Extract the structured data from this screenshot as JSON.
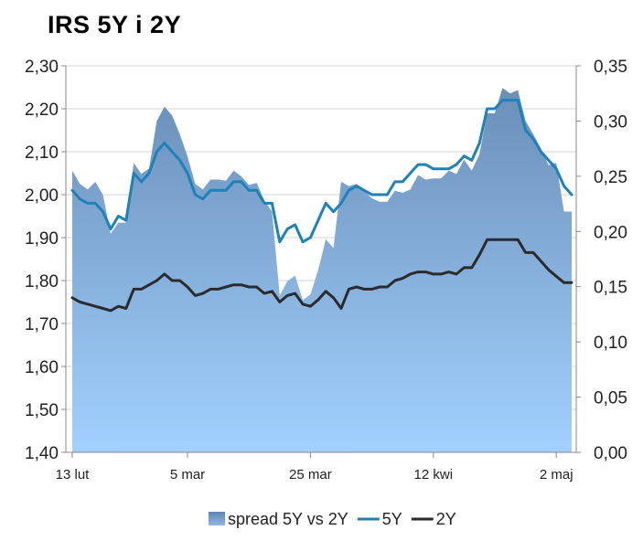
{
  "chart_data": {
    "type": "line",
    "title": "IRS 5Y i 2Y",
    "y_left": {
      "min": 1.4,
      "max": 2.3,
      "step": 0.1,
      "ticks": [
        "1,40",
        "1,50",
        "1,60",
        "1,70",
        "1,80",
        "1,90",
        "2,00",
        "2,10",
        "2,20",
        "2,30"
      ]
    },
    "y_right": {
      "min": 0,
      "max": 0.35,
      "step": 0.05,
      "ticks": [
        "0,00",
        "0,05",
        "0,10",
        "0,15",
        "0,20",
        "0,25",
        "0,30",
        "0,35"
      ]
    },
    "x_ticks": [
      {
        "label": "13 lut",
        "index": 0
      },
      {
        "label": "5 mar",
        "index": 15
      },
      {
        "label": "25 mar",
        "index": 31
      },
      {
        "label": "12 kwi",
        "index": 47
      },
      {
        "label": "2 maj",
        "index": 63
      }
    ],
    "legend_position": "bottom",
    "series": [
      {
        "name": "spread 5Y vs 2Y",
        "kind": "area",
        "axis": "right",
        "color": "#6a93c0",
        "values": [
          0.255,
          0.243,
          0.238,
          0.245,
          0.233,
          0.198,
          0.208,
          0.208,
          0.262,
          0.252,
          0.257,
          0.3,
          0.313,
          0.305,
          0.288,
          0.268,
          0.243,
          0.238,
          0.247,
          0.247,
          0.246,
          0.255,
          0.25,
          0.242,
          0.244,
          0.228,
          0.218,
          0.142,
          0.155,
          0.16,
          0.138,
          0.143,
          0.165,
          0.193,
          0.185,
          0.245,
          0.241,
          0.243,
          0.237,
          0.23,
          0.227,
          0.227,
          0.237,
          0.235,
          0.238,
          0.251,
          0.247,
          0.248,
          0.248,
          0.255,
          0.252,
          0.265,
          0.255,
          0.27,
          0.307,
          0.307,
          0.33,
          0.325,
          0.328,
          0.3,
          0.288,
          0.275,
          0.26,
          0.262,
          0.218,
          0.218
        ]
      },
      {
        "name": "5Y",
        "kind": "line",
        "axis": "left",
        "color": "#1c82b8",
        "values": [
          2.01,
          1.99,
          1.98,
          1.98,
          1.96,
          1.92,
          1.95,
          1.94,
          2.05,
          2.03,
          2.05,
          2.1,
          2.12,
          2.1,
          2.08,
          2.05,
          2.0,
          1.99,
          2.01,
          2.01,
          2.01,
          2.03,
          2.03,
          2.01,
          2.01,
          1.98,
          1.98,
          1.89,
          1.92,
          1.93,
          1.89,
          1.9,
          1.94,
          1.98,
          1.96,
          1.98,
          2.01,
          2.02,
          2.01,
          2.0,
          2.0,
          2.0,
          2.03,
          2.03,
          2.05,
          2.07,
          2.07,
          2.06,
          2.06,
          2.06,
          2.07,
          2.09,
          2.08,
          2.12,
          2.2,
          2.2,
          2.22,
          2.22,
          2.22,
          2.15,
          2.13,
          2.1,
          2.08,
          2.06,
          2.02,
          2.0
        ]
      },
      {
        "name": "2Y",
        "kind": "line",
        "axis": "left",
        "color": "#2b2b2b",
        "values": [
          1.76,
          1.75,
          1.745,
          1.74,
          1.735,
          1.73,
          1.74,
          1.735,
          1.78,
          1.78,
          1.79,
          1.8,
          1.815,
          1.8,
          1.8,
          1.785,
          1.765,
          1.77,
          1.78,
          1.78,
          1.785,
          1.79,
          1.79,
          1.785,
          1.785,
          1.77,
          1.775,
          1.75,
          1.765,
          1.77,
          1.745,
          1.74,
          1.755,
          1.775,
          1.76,
          1.735,
          1.78,
          1.785,
          1.78,
          1.78,
          1.785,
          1.785,
          1.8,
          1.805,
          1.815,
          1.82,
          1.82,
          1.815,
          1.815,
          1.82,
          1.815,
          1.83,
          1.83,
          1.86,
          1.895,
          1.895,
          1.895,
          1.895,
          1.895,
          1.865,
          1.865,
          1.845,
          1.825,
          1.81,
          1.795,
          1.795
        ]
      }
    ]
  }
}
